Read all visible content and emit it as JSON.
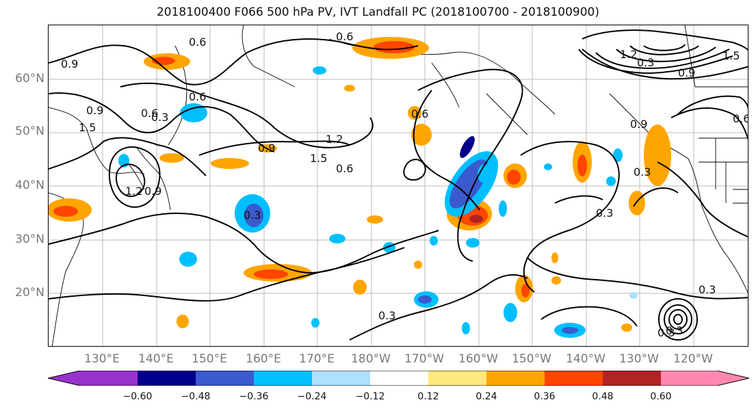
{
  "title": "2018100400 F066 500 hPa PV, IVT Landfall PC (2018100700 - 2018100900)",
  "lat_labels": [
    "60°N",
    "50°N",
    "40°N",
    "30°N",
    "20°N"
  ],
  "lon_labels": [
    "130°E",
    "140°E",
    "150°E",
    "160°E",
    "170°E",
    "180°W",
    "170°W",
    "160°W",
    "150°W",
    "140°W",
    "130°W",
    "120°W"
  ],
  "contour_labels": [
    "0.9",
    "0.6",
    "0.6",
    "0.6",
    "0.9",
    "0.6",
    "0.3",
    "1.2",
    "1.5",
    "0.6",
    "0.9",
    "1.2",
    "1.5",
    "0.9",
    "1.5",
    "0.3",
    "0.3",
    "0.3",
    "0.3",
    "0.3",
    "0.3",
    "0.6",
    "0.9",
    "0.6",
    "0.3",
    "1.2",
    "0.9",
    "0.3"
  ],
  "colorbar": {
    "tick_labels": [
      "−0.60",
      "−0.48",
      "−0.36",
      "−0.24",
      "−0.12",
      "0.12",
      "0.24",
      "0.36",
      "0.48",
      "0.60"
    ],
    "colors": [
      "#9932CC",
      "#00008B",
      "#3A5ACD",
      "#00BFFF",
      "#ADE0FF",
      "#FFFFFF",
      "#FFE87C",
      "#FFA500",
      "#FF4500",
      "#B22222",
      "#FF88B0"
    ]
  }
}
